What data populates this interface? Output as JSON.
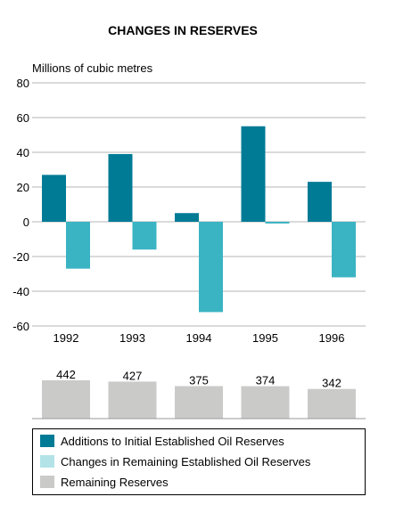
{
  "chart_data": {
    "type": "bar",
    "title": "CHANGES IN RESERVES",
    "ylabel": "Millions of cubic metres",
    "categories": [
      "1992",
      "1993",
      "1994",
      "1995",
      "1996"
    ],
    "ylim": [
      -60,
      80
    ],
    "yticks": [
      80,
      60,
      40,
      20,
      0,
      -20,
      -40,
      -60
    ],
    "grid": true,
    "series": [
      {
        "name": "Additions to Initial Established Oil Reserves",
        "color": "#007b96",
        "values": [
          27,
          39,
          5,
          55,
          23
        ]
      },
      {
        "name": "Changes in Remaining Established Oil Reserves",
        "color": "#3ab4c3",
        "values": [
          -27,
          -16,
          -52,
          -1,
          -32
        ]
      }
    ],
    "remaining": {
      "name": "Remaining Reserves",
      "color": "#cacac8",
      "values": [
        442,
        427,
        375,
        374,
        342
      ]
    },
    "legend_position": "bottom"
  }
}
